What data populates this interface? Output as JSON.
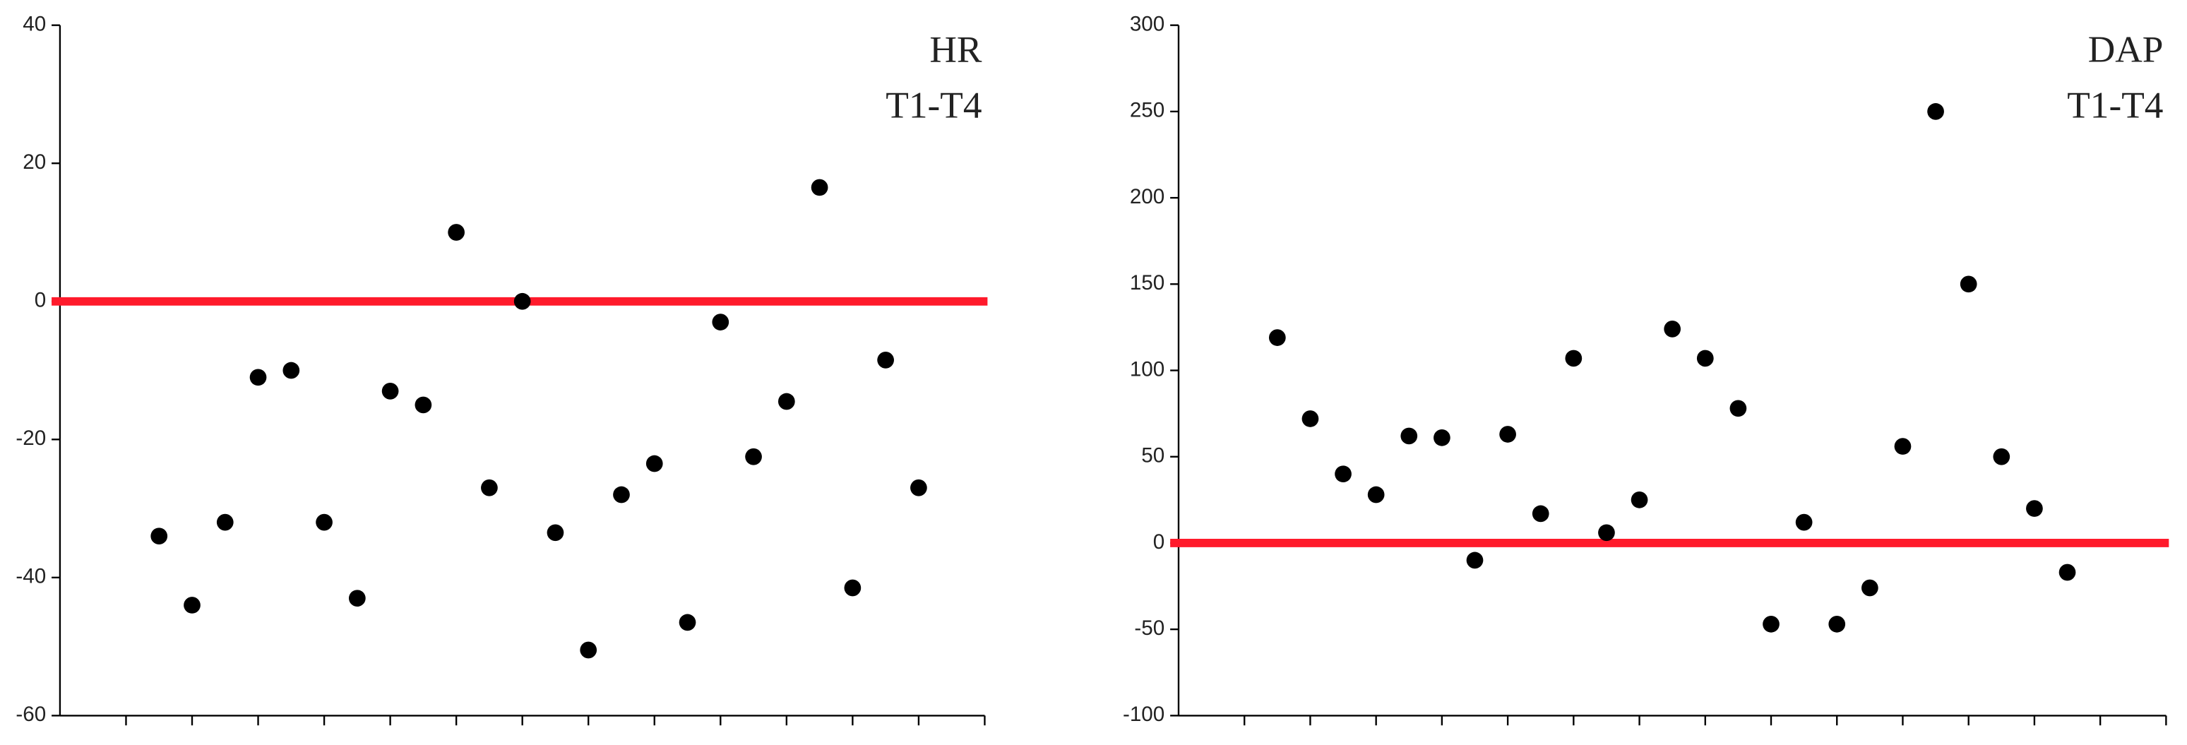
{
  "chart_data": [
    {
      "type": "scatter",
      "annotation": [
        "HR",
        "T1-T4"
      ],
      "x": [
        3,
        4,
        5,
        6,
        7,
        8,
        9,
        10,
        11,
        12,
        13,
        14,
        15,
        16,
        17,
        18,
        19,
        20,
        21,
        22,
        23,
        24,
        25,
        26
      ],
      "values": [
        -34,
        -44,
        -32,
        -11,
        -10,
        -32,
        -43,
        -13,
        -15,
        10,
        -27,
        0,
        -33.5,
        -50.5,
        -28,
        -23.5,
        -46.5,
        -3,
        -22.5,
        -14.5,
        16.5,
        -41.5,
        -8.5,
        -27
      ],
      "color": "#000000",
      "xlim": [
        0,
        28
      ],
      "xticks": [
        2,
        4,
        6,
        8,
        10,
        12,
        14,
        16,
        18,
        20,
        22,
        24,
        26,
        28
      ],
      "ylim": [
        -60,
        40
      ],
      "yticks": [
        -60,
        -40,
        -20,
        0,
        20,
        40
      ],
      "hline": 0,
      "hline_color": "#ff1a2b"
    },
    {
      "type": "scatter",
      "annotation": [
        "DAP",
        "T1-T4"
      ],
      "x": [
        3,
        4,
        5,
        6,
        7,
        8,
        9,
        10,
        11,
        12,
        13,
        14,
        15,
        16,
        17,
        18,
        19,
        20,
        21,
        22,
        23,
        24,
        25,
        26,
        27
      ],
      "values": [
        119,
        72,
        40,
        28,
        62,
        61,
        -10,
        63,
        17,
        107,
        6,
        25,
        124,
        107,
        78,
        -47,
        12,
        -47,
        -26,
        56,
        250,
        150,
        50,
        20,
        -17
      ],
      "color": "#000000",
      "xlim": [
        0,
        30
      ],
      "xticks": [
        2,
        4,
        6,
        8,
        10,
        12,
        14,
        16,
        18,
        20,
        22,
        24,
        26,
        28,
        30
      ],
      "ylim": [
        -100,
        300
      ],
      "yticks": [
        -100,
        -50,
        0,
        50,
        100,
        150,
        200,
        250,
        300
      ],
      "hline": 0,
      "hline_color": "#ff1a2b"
    }
  ]
}
